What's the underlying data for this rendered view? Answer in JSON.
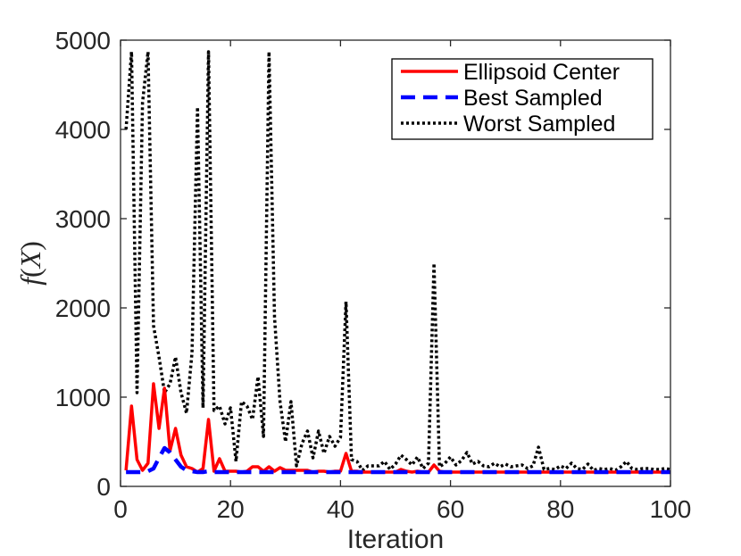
{
  "chart_data": {
    "type": "line",
    "title": "",
    "xlabel": "Iteration",
    "ylabel": "f(X)",
    "ylabel_main": "f",
    "ylabel_open": "(",
    "ylabel_var": "X",
    "ylabel_close": ")",
    "xlim": [
      0,
      100
    ],
    "ylim": [
      0,
      5000
    ],
    "xticks": [
      0,
      20,
      40,
      60,
      80,
      100
    ],
    "yticks": [
      0,
      1000,
      2000,
      3000,
      4000,
      5000
    ],
    "xtick_labels": [
      "0",
      "20",
      "40",
      "60",
      "80",
      "100"
    ],
    "ytick_labels": [
      "0",
      "1000",
      "2000",
      "3000",
      "4000",
      "5000"
    ],
    "grid": false,
    "legend_position": "top-right",
    "series": [
      {
        "name": "Ellipsoid Center",
        "color": "#ff0000",
        "style": "solid",
        "x": [
          1,
          2,
          3,
          4,
          5,
          6,
          7,
          8,
          9,
          10,
          11,
          12,
          13,
          14,
          15,
          16,
          17,
          18,
          19,
          20,
          21,
          22,
          23,
          24,
          25,
          26,
          27,
          28,
          29,
          30,
          31,
          32,
          33,
          34,
          35,
          36,
          37,
          38,
          39,
          40,
          41,
          42,
          43,
          44,
          45,
          46,
          47,
          48,
          49,
          50,
          51,
          52,
          53,
          54,
          55,
          56,
          57,
          58,
          59,
          60,
          61,
          62,
          63,
          64,
          65,
          66,
          67,
          68,
          69,
          70,
          71,
          72,
          73,
          74,
          75,
          76,
          77,
          78,
          79,
          80,
          81,
          82,
          83,
          84,
          85,
          86,
          87,
          88,
          89,
          90,
          91,
          92,
          93,
          94,
          95,
          96,
          97,
          98,
          99,
          100
        ],
        "values": [
          180,
          900,
          300,
          180,
          260,
          1150,
          650,
          1100,
          400,
          650,
          350,
          220,
          200,
          160,
          200,
          750,
          170,
          310,
          170,
          170,
          170,
          160,
          170,
          220,
          220,
          170,
          220,
          170,
          210,
          180,
          180,
          180,
          180,
          180,
          160,
          170,
          170,
          160,
          170,
          170,
          370,
          170,
          170,
          160,
          160,
          160,
          160,
          160,
          160,
          160,
          190,
          170,
          160,
          170,
          160,
          160,
          240,
          170,
          160,
          160,
          160,
          160,
          160,
          160,
          160,
          160,
          160,
          160,
          160,
          160,
          160,
          160,
          160,
          160,
          160,
          160,
          160,
          160,
          160,
          160,
          160,
          160,
          160,
          160,
          160,
          160,
          160,
          160,
          160,
          160,
          160,
          160,
          160,
          160,
          160,
          160,
          160,
          160,
          160,
          160
        ]
      },
      {
        "name": "Best Sampled",
        "color": "#0000ff",
        "style": "dashed",
        "x": [
          1,
          2,
          3,
          4,
          5,
          6,
          7,
          8,
          9,
          10,
          11,
          12,
          13,
          14,
          15,
          16,
          17,
          18,
          19,
          20,
          21,
          22,
          23,
          24,
          25,
          26,
          27,
          28,
          29,
          30,
          31,
          32,
          33,
          34,
          35,
          36,
          37,
          38,
          39,
          40,
          41,
          42,
          43,
          44,
          45,
          46,
          47,
          48,
          49,
          50,
          51,
          52,
          53,
          54,
          55,
          56,
          57,
          58,
          59,
          60,
          61,
          62,
          63,
          64,
          65,
          66,
          67,
          68,
          69,
          70,
          71,
          72,
          73,
          74,
          75,
          76,
          77,
          78,
          79,
          80,
          81,
          82,
          83,
          84,
          85,
          86,
          87,
          88,
          89,
          90,
          91,
          92,
          93,
          94,
          95,
          96,
          97,
          98,
          99,
          100
        ],
        "values": [
          160,
          160,
          160,
          160,
          170,
          200,
          320,
          430,
          380,
          300,
          220,
          180,
          170,
          160,
          160,
          170,
          160,
          160,
          160,
          160,
          160,
          160,
          160,
          160,
          160,
          160,
          160,
          160,
          160,
          160,
          160,
          160,
          160,
          160,
          160,
          160,
          160,
          160,
          160,
          160,
          160,
          160,
          160,
          160,
          160,
          160,
          160,
          160,
          160,
          160,
          160,
          160,
          160,
          160,
          160,
          160,
          160,
          160,
          160,
          160,
          160,
          160,
          160,
          160,
          160,
          160,
          160,
          160,
          160,
          160,
          160,
          160,
          160,
          160,
          160,
          160,
          160,
          160,
          160,
          160,
          160,
          160,
          160,
          160,
          160,
          160,
          160,
          160,
          160,
          160,
          160,
          160,
          160,
          160,
          160,
          160,
          160,
          160,
          160,
          160
        ]
      },
      {
        "name": "Worst Sampled",
        "color": "#000000",
        "style": "dotted",
        "x": [
          1,
          2,
          3,
          4,
          5,
          6,
          7,
          8,
          9,
          10,
          11,
          12,
          13,
          14,
          15,
          16,
          17,
          18,
          19,
          20,
          21,
          22,
          23,
          24,
          25,
          26,
          27,
          28,
          29,
          30,
          31,
          32,
          33,
          34,
          35,
          36,
          37,
          38,
          39,
          40,
          41,
          42,
          43,
          44,
          45,
          46,
          47,
          48,
          49,
          50,
          51,
          52,
          53,
          54,
          55,
          56,
          57,
          58,
          59,
          60,
          61,
          62,
          63,
          64,
          65,
          66,
          67,
          68,
          69,
          70,
          71,
          72,
          73,
          74,
          75,
          76,
          77,
          78,
          79,
          80,
          81,
          82,
          83,
          84,
          85,
          86,
          87,
          88,
          89,
          90,
          91,
          92,
          93,
          94,
          95,
          96,
          97,
          98,
          99,
          100
        ],
        "values": [
          4000,
          4870,
          1050,
          4300,
          4870,
          1800,
          1450,
          1050,
          1150,
          1450,
          1050,
          820,
          1500,
          4250,
          880,
          4870,
          850,
          900,
          700,
          880,
          280,
          950,
          900,
          750,
          1230,
          560,
          4870,
          1900,
          950,
          500,
          950,
          230,
          480,
          620,
          320,
          620,
          370,
          560,
          450,
          550,
          2070,
          300,
          280,
          180,
          230,
          230,
          230,
          280,
          190,
          250,
          350,
          300,
          240,
          330,
          200,
          260,
          2500,
          220,
          260,
          330,
          240,
          290,
          380,
          250,
          280,
          230,
          220,
          260,
          220,
          250,
          220,
          230,
          240,
          200,
          230,
          440,
          190,
          200,
          190,
          230,
          200,
          260,
          200,
          190,
          250,
          180,
          200,
          190,
          200,
          180,
          220,
          280,
          200,
          190,
          200,
          200,
          190,
          190,
          200,
          190
        ]
      }
    ]
  }
}
